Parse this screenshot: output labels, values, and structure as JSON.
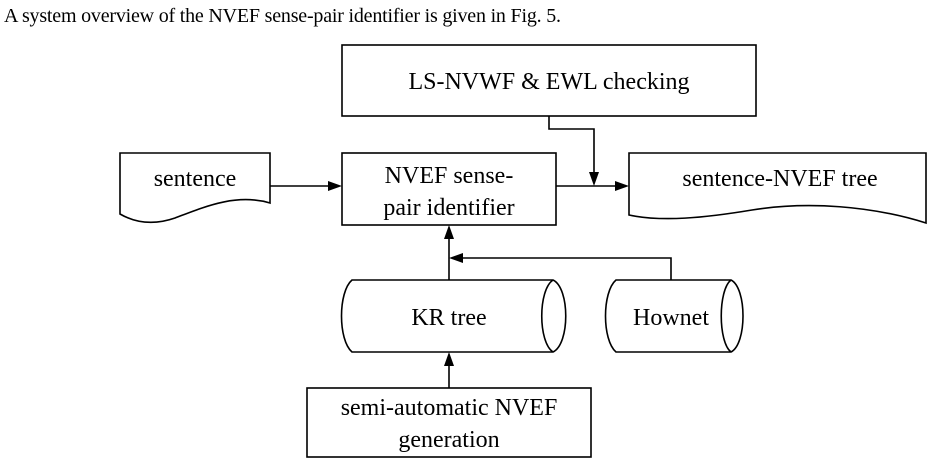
{
  "caption": "A system overview of the NVEF sense-pair identifier is given in Fig. 5.",
  "diagram": {
    "nodes": {
      "checking": {
        "label": "LS-NVWF & EWL checking"
      },
      "identifier": {
        "line1": "NVEF sense-",
        "line2": "pair identifier"
      },
      "sentence": {
        "label": "sentence"
      },
      "output": {
        "label": "sentence-NVEF tree"
      },
      "kr_tree": {
        "label": "KR tree"
      },
      "hownet": {
        "label": "Hownet"
      },
      "generation": {
        "line1": "semi-automatic NVEF",
        "line2": "generation"
      }
    }
  }
}
